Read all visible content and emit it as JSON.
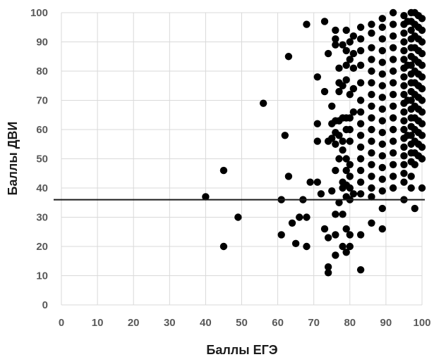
{
  "chart_data": {
    "type": "scatter",
    "title": "",
    "xlabel": "Баллы ЕГЭ",
    "ylabel": "Баллы ДВИ",
    "xlim": [
      0,
      100
    ],
    "ylim": [
      0,
      100
    ],
    "xticks": [
      "0",
      "10",
      "20",
      "30",
      "40",
      "50",
      "60",
      "70",
      "80",
      "90",
      "100"
    ],
    "yticks": [
      "0",
      "10",
      "20",
      "30",
      "40",
      "50",
      "60",
      "70",
      "80",
      "90",
      "100"
    ],
    "grid": "vertical and horizontal",
    "marker_color": "#000000",
    "threshold_line": {
      "orientation": "horizontal",
      "y": 36
    },
    "series": [
      {
        "points": [
          [
            40,
            37
          ],
          [
            45,
            46
          ],
          [
            45,
            20
          ],
          [
            49,
            30
          ],
          [
            56,
            69
          ],
          [
            61,
            36
          ],
          [
            61,
            24
          ],
          [
            62,
            58
          ],
          [
            63,
            85
          ],
          [
            63,
            44
          ],
          [
            64,
            28
          ],
          [
            65,
            21
          ],
          [
            66,
            30
          ],
          [
            67,
            36
          ],
          [
            68,
            30
          ],
          [
            68,
            20
          ],
          [
            68,
            96
          ],
          [
            69,
            42
          ],
          [
            71,
            78
          ],
          [
            71,
            62
          ],
          [
            71,
            56
          ],
          [
            71,
            42
          ],
          [
            72,
            38
          ],
          [
            73,
            97
          ],
          [
            73,
            73
          ],
          [
            73,
            26
          ],
          [
            74,
            23
          ],
          [
            74,
            13
          ],
          [
            74,
            11
          ],
          [
            74,
            56
          ],
          [
            74,
            86
          ],
          [
            75,
            68
          ],
          [
            75,
            62
          ],
          [
            75,
            57
          ],
          [
            75,
            39
          ],
          [
            76,
            94
          ],
          [
            76,
            91
          ],
          [
            76,
            89
          ],
          [
            76,
            63
          ],
          [
            76,
            59
          ],
          [
            76,
            55
          ],
          [
            76,
            46
          ],
          [
            76,
            31
          ],
          [
            76,
            24
          ],
          [
            76,
            17
          ],
          [
            77,
            76
          ],
          [
            77,
            73
          ],
          [
            77,
            63
          ],
          [
            77,
            58
          ],
          [
            77,
            50
          ],
          [
            77,
            35
          ],
          [
            77,
            81
          ],
          [
            78,
            89
          ],
          [
            78,
            75
          ],
          [
            78,
            64
          ],
          [
            78,
            56
          ],
          [
            78,
            53
          ],
          [
            78,
            42
          ],
          [
            78,
            40
          ],
          [
            78,
            31
          ],
          [
            78,
            20
          ],
          [
            79,
            94
          ],
          [
            79,
            87
          ],
          [
            79,
            82
          ],
          [
            79,
            77
          ],
          [
            79,
            64
          ],
          [
            79,
            60
          ],
          [
            79,
            50
          ],
          [
            79,
            46
          ],
          [
            79,
            41
          ],
          [
            79,
            37
          ],
          [
            79,
            26
          ],
          [
            79,
            18
          ],
          [
            80,
            90
          ],
          [
            80,
            84
          ],
          [
            80,
            72
          ],
          [
            80,
            64
          ],
          [
            80,
            60
          ],
          [
            80,
            56
          ],
          [
            80,
            48
          ],
          [
            80,
            44
          ],
          [
            80,
            40
          ],
          [
            80,
            36
          ],
          [
            80,
            24
          ],
          [
            80,
            20
          ],
          [
            81,
            92
          ],
          [
            81,
            86
          ],
          [
            81,
            81
          ],
          [
            81,
            74
          ],
          [
            81,
            66
          ],
          [
            81,
            38
          ],
          [
            83,
            95
          ],
          [
            83,
            91
          ],
          [
            83,
            87
          ],
          [
            83,
            82
          ],
          [
            83,
            76
          ],
          [
            83,
            70
          ],
          [
            83,
            66
          ],
          [
            83,
            62
          ],
          [
            83,
            58
          ],
          [
            83,
            54
          ],
          [
            83,
            50
          ],
          [
            83,
            46
          ],
          [
            83,
            42
          ],
          [
            83,
            38
          ],
          [
            83,
            24
          ],
          [
            83,
            12
          ],
          [
            86,
            96
          ],
          [
            86,
            93
          ],
          [
            86,
            88
          ],
          [
            86,
            84
          ],
          [
            86,
            80
          ],
          [
            86,
            76
          ],
          [
            86,
            72
          ],
          [
            86,
            68
          ],
          [
            86,
            64
          ],
          [
            86,
            60
          ],
          [
            86,
            56
          ],
          [
            86,
            52
          ],
          [
            86,
            48
          ],
          [
            86,
            44
          ],
          [
            86,
            40
          ],
          [
            86,
            37
          ],
          [
            86,
            28
          ],
          [
            89,
            98
          ],
          [
            89,
            95
          ],
          [
            89,
            91
          ],
          [
            89,
            87
          ],
          [
            89,
            83
          ],
          [
            89,
            79
          ],
          [
            89,
            75
          ],
          [
            89,
            71
          ],
          [
            89,
            67
          ],
          [
            89,
            63
          ],
          [
            89,
            59
          ],
          [
            89,
            55
          ],
          [
            89,
            51
          ],
          [
            89,
            47
          ],
          [
            89,
            43
          ],
          [
            89,
            39
          ],
          [
            89,
            33
          ],
          [
            89,
            26
          ],
          [
            92,
            100
          ],
          [
            92,
            96
          ],
          [
            92,
            92
          ],
          [
            92,
            88
          ],
          [
            92,
            84
          ],
          [
            92,
            80
          ],
          [
            92,
            76
          ],
          [
            92,
            72
          ],
          [
            92,
            68
          ],
          [
            92,
            64
          ],
          [
            92,
            60
          ],
          [
            92,
            56
          ],
          [
            92,
            52
          ],
          [
            92,
            48
          ],
          [
            92,
            44
          ],
          [
            92,
            40
          ],
          [
            95,
            99
          ],
          [
            95,
            96
          ],
          [
            95,
            93
          ],
          [
            95,
            90
          ],
          [
            95,
            87
          ],
          [
            95,
            84
          ],
          [
            95,
            81
          ],
          [
            95,
            78
          ],
          [
            95,
            75
          ],
          [
            95,
            72
          ],
          [
            95,
            69
          ],
          [
            95,
            66
          ],
          [
            95,
            63
          ],
          [
            95,
            60
          ],
          [
            95,
            57
          ],
          [
            95,
            54
          ],
          [
            95,
            51
          ],
          [
            95,
            48
          ],
          [
            95,
            45
          ],
          [
            95,
            42
          ],
          [
            95,
            36
          ],
          [
            96,
            97
          ],
          [
            96,
            82
          ],
          [
            96,
            70
          ],
          [
            96,
            58
          ],
          [
            97,
            100
          ],
          [
            97,
            97
          ],
          [
            97,
            94
          ],
          [
            97,
            91
          ],
          [
            97,
            88
          ],
          [
            97,
            85
          ],
          [
            97,
            82
          ],
          [
            97,
            79
          ],
          [
            97,
            76
          ],
          [
            97,
            73
          ],
          [
            97,
            70
          ],
          [
            97,
            67
          ],
          [
            97,
            64
          ],
          [
            97,
            61
          ],
          [
            97,
            58
          ],
          [
            97,
            55
          ],
          [
            97,
            52
          ],
          [
            97,
            49
          ],
          [
            97,
            44
          ],
          [
            97,
            40
          ],
          [
            98,
            100
          ],
          [
            98,
            96
          ],
          [
            98,
            92
          ],
          [
            98,
            88
          ],
          [
            98,
            84
          ],
          [
            98,
            80
          ],
          [
            98,
            76
          ],
          [
            98,
            72
          ],
          [
            98,
            68
          ],
          [
            98,
            64
          ],
          [
            98,
            60
          ],
          [
            98,
            56
          ],
          [
            98,
            52
          ],
          [
            98,
            48
          ],
          [
            98,
            33
          ],
          [
            99,
            99
          ],
          [
            99,
            95
          ],
          [
            99,
            91
          ],
          [
            99,
            87
          ],
          [
            99,
            83
          ],
          [
            99,
            79
          ],
          [
            99,
            75
          ],
          [
            99,
            71
          ],
          [
            99,
            67
          ],
          [
            99,
            63
          ],
          [
            99,
            59
          ],
          [
            99,
            55
          ],
          [
            99,
            51
          ],
          [
            100,
            98
          ],
          [
            100,
            94
          ],
          [
            100,
            90
          ],
          [
            100,
            86
          ],
          [
            100,
            82
          ],
          [
            100,
            78
          ],
          [
            100,
            74
          ],
          [
            100,
            70
          ],
          [
            100,
            66
          ],
          [
            100,
            62
          ],
          [
            100,
            58
          ],
          [
            100,
            54
          ],
          [
            100,
            50
          ],
          [
            100,
            40
          ]
        ]
      }
    ]
  }
}
